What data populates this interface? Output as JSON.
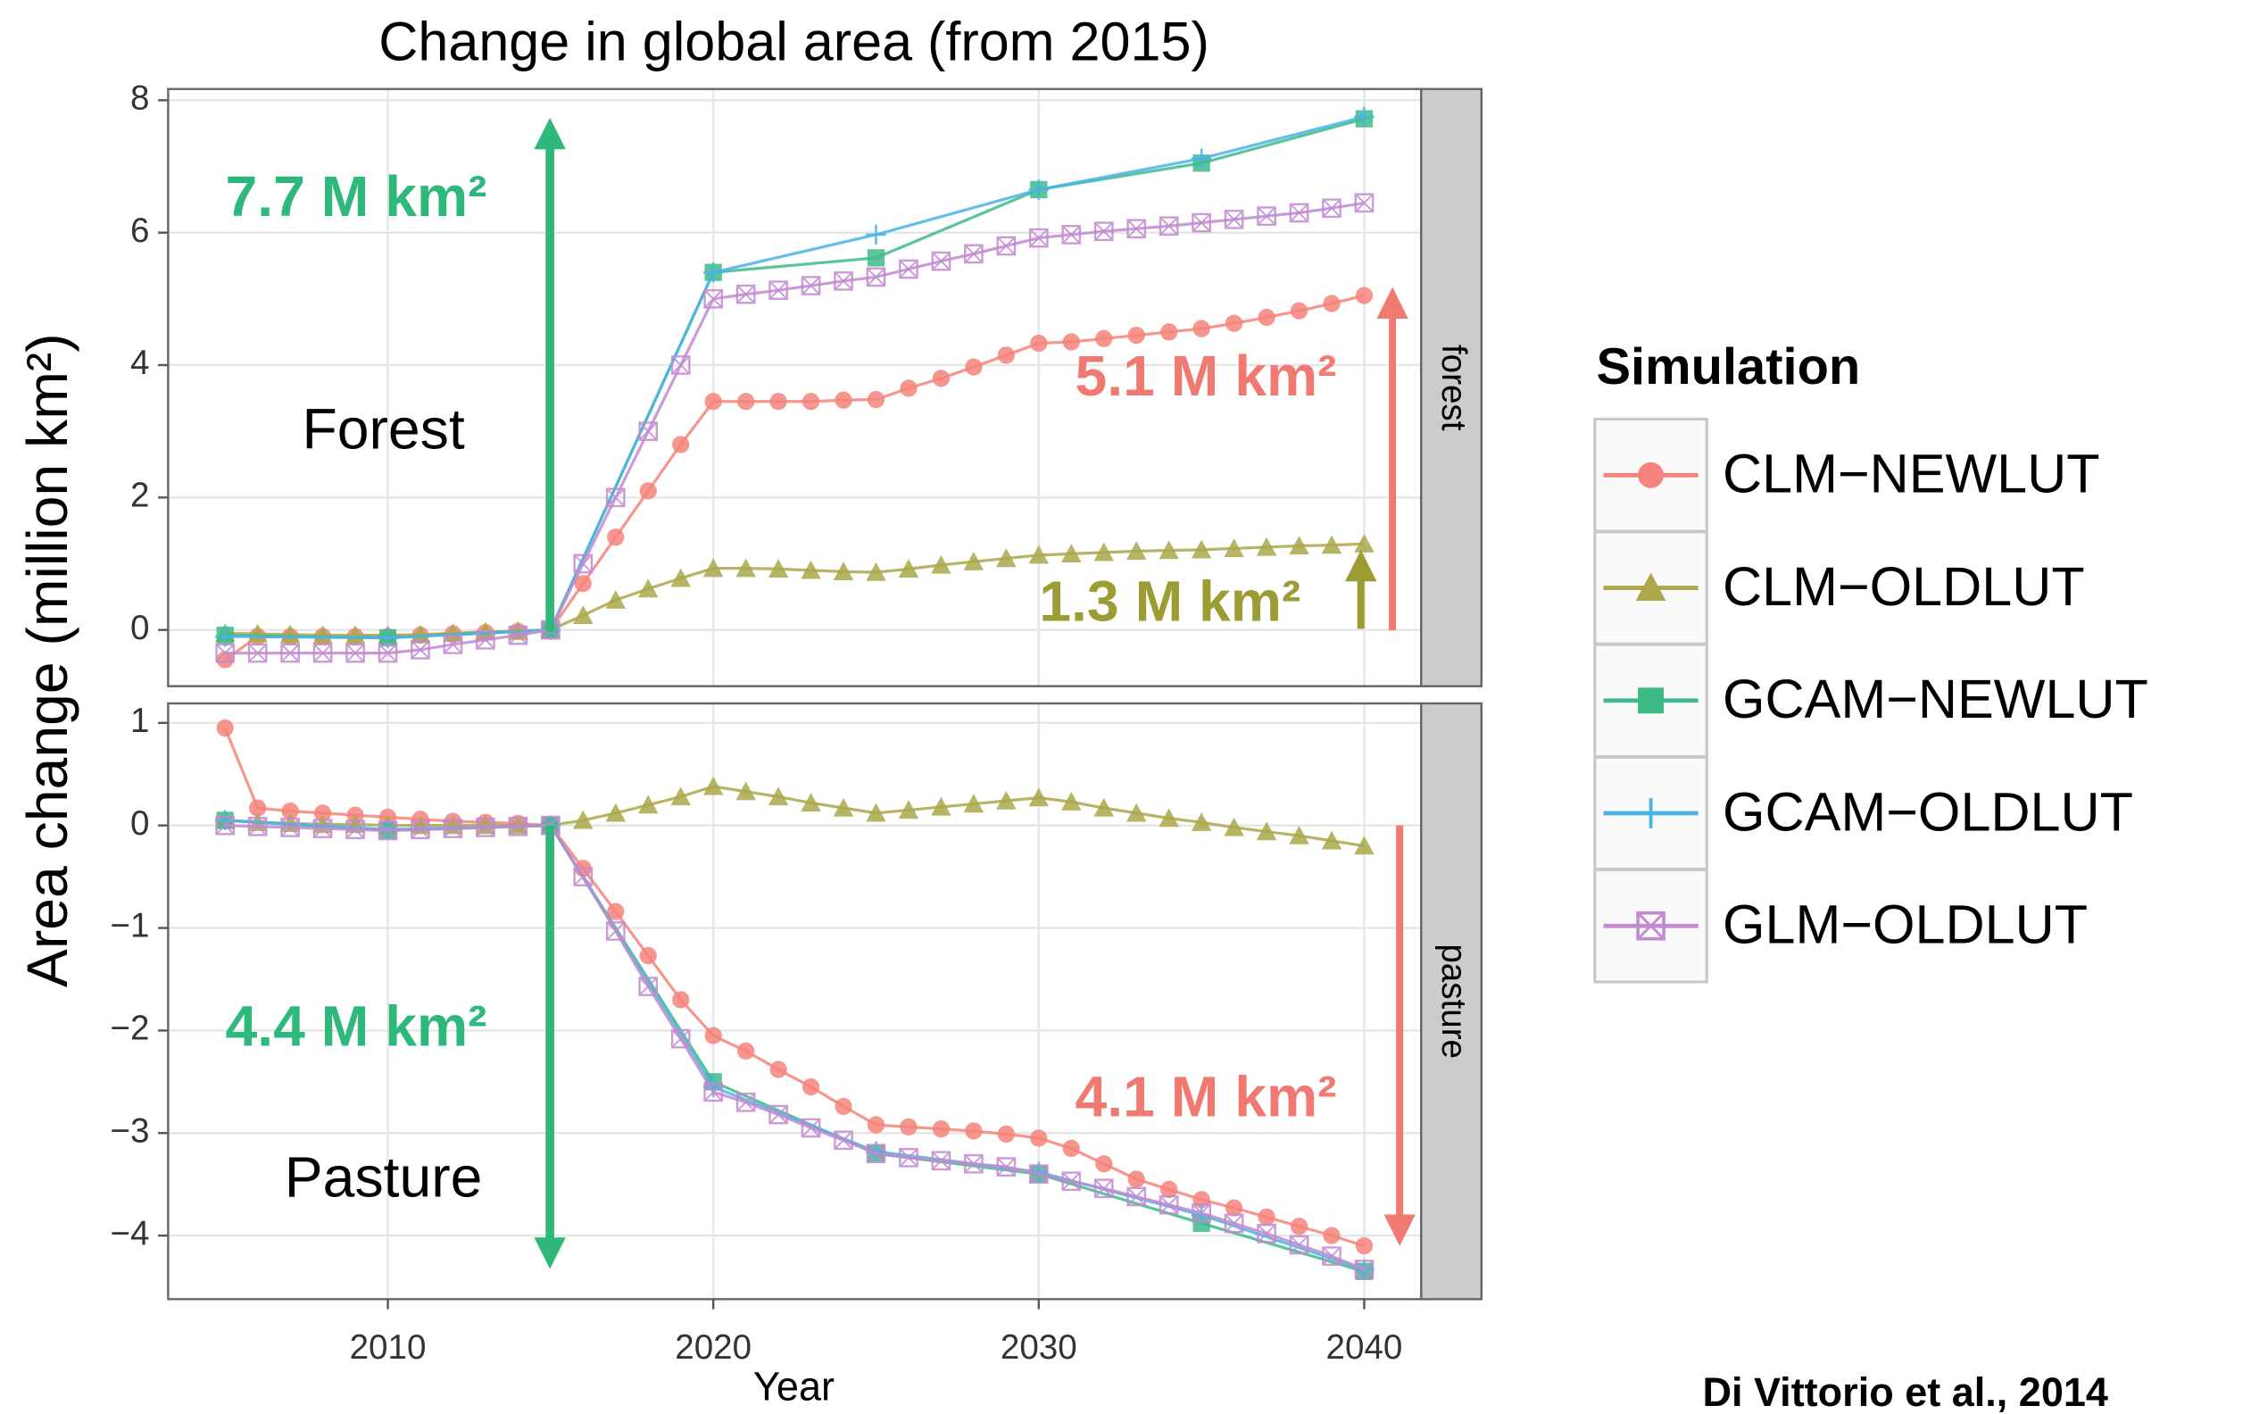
{
  "chart_data": {
    "type": "line",
    "title": "Change in global area (from 2015)",
    "x_label": "Year",
    "y_label": "Area change (million km²)",
    "xlim": [
      2003.25,
      2041.75
    ],
    "xticks": [
      2010,
      2020,
      2030,
      2040
    ],
    "grid": true,
    "legend_title": "Simulation",
    "legend_position": "right",
    "series": [
      {
        "name": "CLM−NEWLUT",
        "color": "#f4847b",
        "marker": "circle"
      },
      {
        "name": "CLM−OLDLUT",
        "color": "#aaa84a",
        "marker": "triangle"
      },
      {
        "name": "GCAM−NEWLUT",
        "color": "#3cbb86",
        "marker": "square"
      },
      {
        "name": "GCAM−OLDLUT",
        "color": "#4ab3e6",
        "marker": "plus"
      },
      {
        "name": "GLM−OLDLUT",
        "color": "#c28ad0",
        "marker": "boxx"
      }
    ],
    "panels": [
      {
        "label": "forest",
        "ylim": [
          -0.85,
          8.17
        ],
        "yticks": [
          0,
          2,
          4,
          6,
          8
        ],
        "lines": [
          {
            "x": [
              2005,
              2006,
              2007,
              2008,
              2009,
              2010,
              2011,
              2012,
              2013,
              2014,
              2015,
              2016,
              2017,
              2018,
              2019,
              2020,
              2021,
              2022,
              2023,
              2024,
              2025,
              2026,
              2027,
              2028,
              2029,
              2030,
              2031,
              2032,
              2033,
              2034,
              2035,
              2036,
              2037,
              2038,
              2039,
              2040
            ],
            "values": [
              -0.45,
              -0.1,
              -0.1,
              -0.1,
              -0.1,
              -0.1,
              -0.08,
              -0.06,
              -0.04,
              -0.02,
              0,
              0.7,
              1.4,
              2.1,
              2.8,
              3.45,
              3.45,
              3.45,
              3.45,
              3.47,
              3.48,
              3.65,
              3.8,
              3.97,
              4.15,
              4.33,
              4.35,
              4.4,
              4.45,
              4.5,
              4.55,
              4.63,
              4.72,
              4.82,
              4.93,
              5.05
            ]
          },
          {
            "x": [
              2005,
              2006,
              2007,
              2008,
              2009,
              2010,
              2011,
              2012,
              2013,
              2014,
              2015,
              2016,
              2017,
              2018,
              2019,
              2020,
              2021,
              2022,
              2023,
              2024,
              2025,
              2026,
              2027,
              2028,
              2029,
              2030,
              2031,
              2032,
              2033,
              2034,
              2035,
              2036,
              2037,
              2038,
              2039,
              2040
            ],
            "values": [
              -0.05,
              -0.06,
              -0.07,
              -0.08,
              -0.08,
              -0.08,
              -0.07,
              -0.05,
              -0.03,
              -0.02,
              0,
              0.22,
              0.45,
              0.62,
              0.78,
              0.93,
              0.93,
              0.92,
              0.9,
              0.88,
              0.87,
              0.92,
              0.98,
              1.03,
              1.08,
              1.13,
              1.15,
              1.17,
              1.19,
              1.2,
              1.21,
              1.23,
              1.25,
              1.27,
              1.28,
              1.3
            ]
          },
          {
            "x": [
              2005,
              2010,
              2015,
              2020,
              2025,
              2030,
              2035,
              2040
            ],
            "values": [
              -0.08,
              -0.12,
              0,
              5.4,
              5.62,
              6.65,
              7.05,
              7.72
            ]
          },
          {
            "x": [
              2005,
              2010,
              2015,
              2020,
              2025,
              2030,
              2035,
              2040
            ],
            "values": [
              -0.1,
              -0.12,
              0,
              5.4,
              5.97,
              6.65,
              7.12,
              7.75
            ]
          },
          {
            "x": [
              2005,
              2006,
              2007,
              2008,
              2009,
              2010,
              2011,
              2012,
              2013,
              2014,
              2015,
              2016,
              2017,
              2018,
              2019,
              2020,
              2021,
              2022,
              2023,
              2024,
              2025,
              2026,
              2027,
              2028,
              2029,
              2030,
              2031,
              2032,
              2033,
              2034,
              2035,
              2036,
              2037,
              2038,
              2039,
              2040
            ],
            "values": [
              -0.35,
              -0.35,
              -0.35,
              -0.35,
              -0.35,
              -0.35,
              -0.3,
              -0.22,
              -0.15,
              -0.08,
              0,
              1.0,
              2.0,
              3.0,
              4.0,
              5.0,
              5.07,
              5.13,
              5.2,
              5.27,
              5.33,
              5.45,
              5.57,
              5.68,
              5.8,
              5.92,
              5.97,
              6.02,
              6.06,
              6.1,
              6.15,
              6.2,
              6.25,
              6.3,
              6.37,
              6.45
            ]
          }
        ]
      },
      {
        "label": "pasture",
        "ylim": [
          -4.62,
          1.19
        ],
        "yticks": [
          {
            "value": -4,
            "label": "−4"
          },
          {
            "value": -3,
            "label": "−3"
          },
          {
            "value": -2,
            "label": "−2"
          },
          {
            "value": -1,
            "label": "−1"
          },
          0,
          1
        ],
        "lines": [
          {
            "x": [
              2005,
              2006,
              2007,
              2008,
              2009,
              2010,
              2011,
              2012,
              2013,
              2014,
              2015,
              2016,
              2017,
              2018,
              2019,
              2020,
              2021,
              2022,
              2023,
              2024,
              2025,
              2026,
              2027,
              2028,
              2029,
              2030,
              2031,
              2032,
              2033,
              2034,
              2035,
              2036,
              2037,
              2038,
              2039,
              2040
            ],
            "values": [
              0.95,
              0.17,
              0.14,
              0.12,
              0.1,
              0.08,
              0.06,
              0.04,
              0.03,
              0.02,
              0,
              -0.42,
              -0.84,
              -1.27,
              -1.7,
              -2.05,
              -2.2,
              -2.38,
              -2.55,
              -2.74,
              -2.92,
              -2.94,
              -2.96,
              -2.98,
              -3.01,
              -3.05,
              -3.15,
              -3.3,
              -3.45,
              -3.55,
              -3.65,
              -3.73,
              -3.82,
              -3.91,
              -4.0,
              -4.1
            ]
          },
          {
            "x": [
              2005,
              2006,
              2007,
              2008,
              2009,
              2010,
              2011,
              2012,
              2013,
              2014,
              2015,
              2016,
              2017,
              2018,
              2019,
              2020,
              2021,
              2022,
              2023,
              2024,
              2025,
              2026,
              2027,
              2028,
              2029,
              2030,
              2031,
              2032,
              2033,
              2034,
              2035,
              2036,
              2037,
              2038,
              2039,
              2040
            ],
            "values": [
              0.05,
              0.03,
              0.02,
              0.01,
              0.01,
              0,
              0,
              0,
              0,
              0,
              0,
              0.05,
              0.12,
              0.2,
              0.28,
              0.38,
              0.33,
              0.28,
              0.22,
              0.17,
              0.12,
              0.15,
              0.18,
              0.21,
              0.24,
              0.27,
              0.23,
              0.17,
              0.12,
              0.07,
              0.03,
              -0.02,
              -0.06,
              -0.1,
              -0.15,
              -0.2
            ]
          },
          {
            "x": [
              2005,
              2010,
              2015,
              2020,
              2025,
              2030,
              2035,
              2040
            ],
            "values": [
              0.05,
              -0.05,
              0,
              -2.5,
              -3.2,
              -3.4,
              -3.88,
              -4.35
            ]
          },
          {
            "x": [
              2005,
              2010,
              2015,
              2020,
              2025,
              2030,
              2035,
              2040
            ],
            "values": [
              0.05,
              -0.04,
              0,
              -2.55,
              -3.18,
              -3.38,
              -3.8,
              -4.33
            ]
          },
          {
            "x": [
              2005,
              2006,
              2007,
              2008,
              2009,
              2010,
              2011,
              2012,
              2013,
              2014,
              2015,
              2016,
              2017,
              2018,
              2019,
              2020,
              2021,
              2022,
              2023,
              2024,
              2025,
              2026,
              2027,
              2028,
              2029,
              2030,
              2031,
              2032,
              2033,
              2034,
              2035,
              2036,
              2037,
              2038,
              2039,
              2040
            ],
            "values": [
              0,
              -0.01,
              -0.02,
              -0.03,
              -0.04,
              -0.05,
              -0.04,
              -0.03,
              -0.02,
              -0.01,
              0,
              -0.5,
              -1.03,
              -1.57,
              -2.08,
              -2.6,
              -2.7,
              -2.82,
              -2.95,
              -3.07,
              -3.2,
              -3.24,
              -3.27,
              -3.3,
              -3.33,
              -3.4,
              -3.47,
              -3.54,
              -3.62,
              -3.7,
              -3.78,
              -3.88,
              -3.98,
              -4.09,
              -4.2,
              -4.33
            ]
          }
        ]
      }
    ],
    "annotations": [
      {
        "text": "7.7 M km²",
        "color": "#2fb87c"
      },
      {
        "text": "Forest",
        "color": "#000000"
      },
      {
        "text": "5.1 M km²",
        "color": "#f07a72"
      },
      {
        "text": "1.3 M km²",
        "color": "#9c9c35"
      },
      {
        "text": "4.4 M km²",
        "color": "#2fb87c"
      },
      {
        "text": "Pasture",
        "color": "#000000"
      },
      {
        "text": "4.1 M km²",
        "color": "#f07a72"
      }
    ],
    "source": "Di Vittorio et al., 2014"
  }
}
